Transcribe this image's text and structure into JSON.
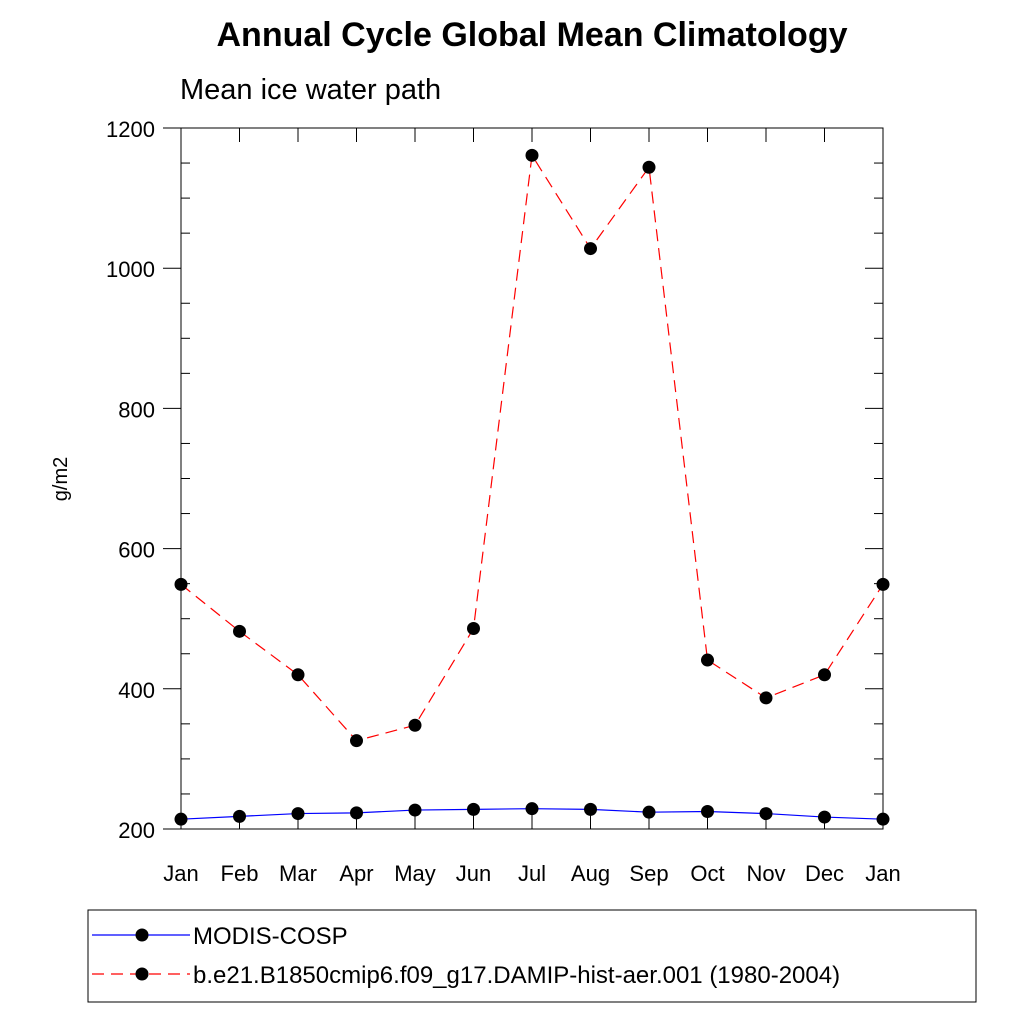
{
  "chart_data": {
    "type": "line",
    "title": "Annual Cycle Global Mean Climatology",
    "subtitle": "Mean ice water path",
    "xlabel": "",
    "ylabel": "g/m2",
    "categories": [
      "Jan",
      "Feb",
      "Mar",
      "Apr",
      "May",
      "Jun",
      "Jul",
      "Aug",
      "Sep",
      "Oct",
      "Nov",
      "Dec",
      "Jan"
    ],
    "ylim": [
      200,
      1200
    ],
    "yticks": [
      200,
      400,
      600,
      800,
      1000,
      1200
    ],
    "y_minor_step": 50,
    "grid": false,
    "legend_position": "bottom",
    "series": [
      {
        "name": "MODIS-COSP",
        "color": "#0000ff",
        "line_style": "solid",
        "marker": "filled-circle",
        "marker_color": "#000000",
        "values": [
          214,
          218,
          222,
          223,
          227,
          228,
          229,
          228,
          224,
          225,
          222,
          217,
          214
        ]
      },
      {
        "name": "b.e21.B1850cmip6.f09_g17.DAMIP-hist-aer.001 (1980-2004)",
        "color": "#ff0000",
        "line_style": "dashed",
        "marker": "filled-circle",
        "marker_color": "#000000",
        "values": [
          549,
          482,
          420,
          326,
          348,
          486,
          1161,
          1028,
          1144,
          441,
          387,
          420,
          549
        ]
      }
    ]
  }
}
